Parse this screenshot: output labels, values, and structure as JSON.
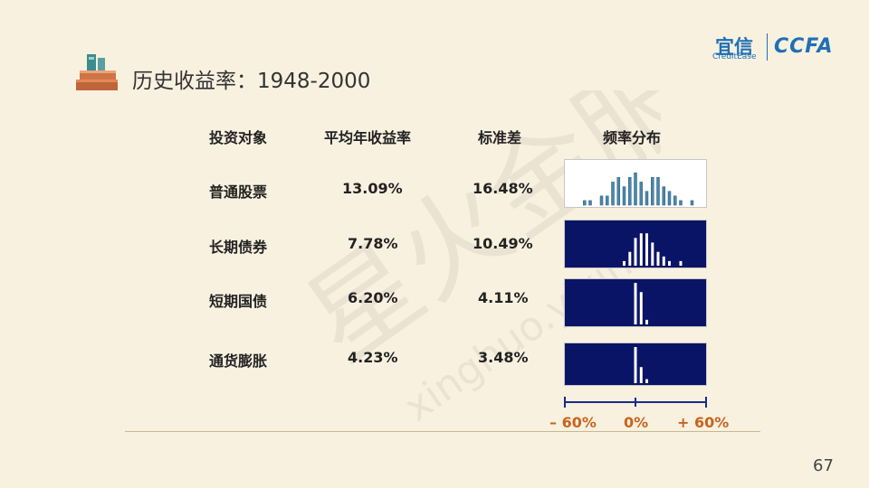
{
  "title": "历史收益率：1948-2000",
  "logo": {
    "cn": "宜信",
    "en": "CreditEase",
    "right": "CCFA"
  },
  "watermark": {
    "cn": "星火金服",
    "en": "xinghuo.yixin.com"
  },
  "table": {
    "headers": [
      "投资对象",
      "平均年收益率",
      "标准差",
      "频率分布"
    ],
    "rows": [
      {
        "asset": "普通股票",
        "mean": "13.09%",
        "std": "16.48%"
      },
      {
        "asset": "长期债券",
        "mean": "7.78%",
        "std": "10.49%"
      },
      {
        "asset": "短期国债",
        "mean": "6.20%",
        "std": "4.11%"
      },
      {
        "asset": "通货膨胀",
        "mean": "4.23%",
        "std": "3.48%"
      }
    ]
  },
  "chart_data": {
    "type": "bar",
    "title": "",
    "xlabel": "",
    "ylabel": "",
    "xlim": [
      -60,
      60
    ],
    "x_ticks": [
      "– 60%",
      "0%",
      "+ 60%"
    ],
    "series": [
      {
        "name": "普通股票",
        "bg": "#ffffff",
        "bar": "#4a86a8",
        "x": [
          -45,
          -40,
          -30,
          -25,
          -20,
          -15,
          -10,
          -5,
          0,
          5,
          10,
          15,
          20,
          25,
          30,
          35,
          40,
          50
        ],
        "values": [
          1,
          1,
          2,
          2,
          5,
          6,
          4,
          6,
          7,
          5,
          3,
          6,
          6,
          4,
          3,
          2,
          1,
          1
        ]
      },
      {
        "name": "长期债券",
        "bg": "#0a1466",
        "bar": "#ffffff",
        "x": [
          -10,
          -5,
          0,
          5,
          10,
          15,
          20,
          25,
          30,
          40
        ],
        "values": [
          1,
          3,
          6,
          7,
          7,
          5,
          3,
          2,
          1,
          1
        ]
      },
      {
        "name": "短期国债",
        "bg": "#0a1466",
        "bar": "#ffffff",
        "x": [
          0,
          5,
          10
        ],
        "values": [
          9,
          7,
          1
        ]
      },
      {
        "name": "通货膨胀",
        "bg": "#0a1466",
        "bar": "#ffffff",
        "x": [
          0,
          5,
          10
        ],
        "values": [
          9,
          4,
          1
        ]
      }
    ]
  },
  "page_number": "67"
}
